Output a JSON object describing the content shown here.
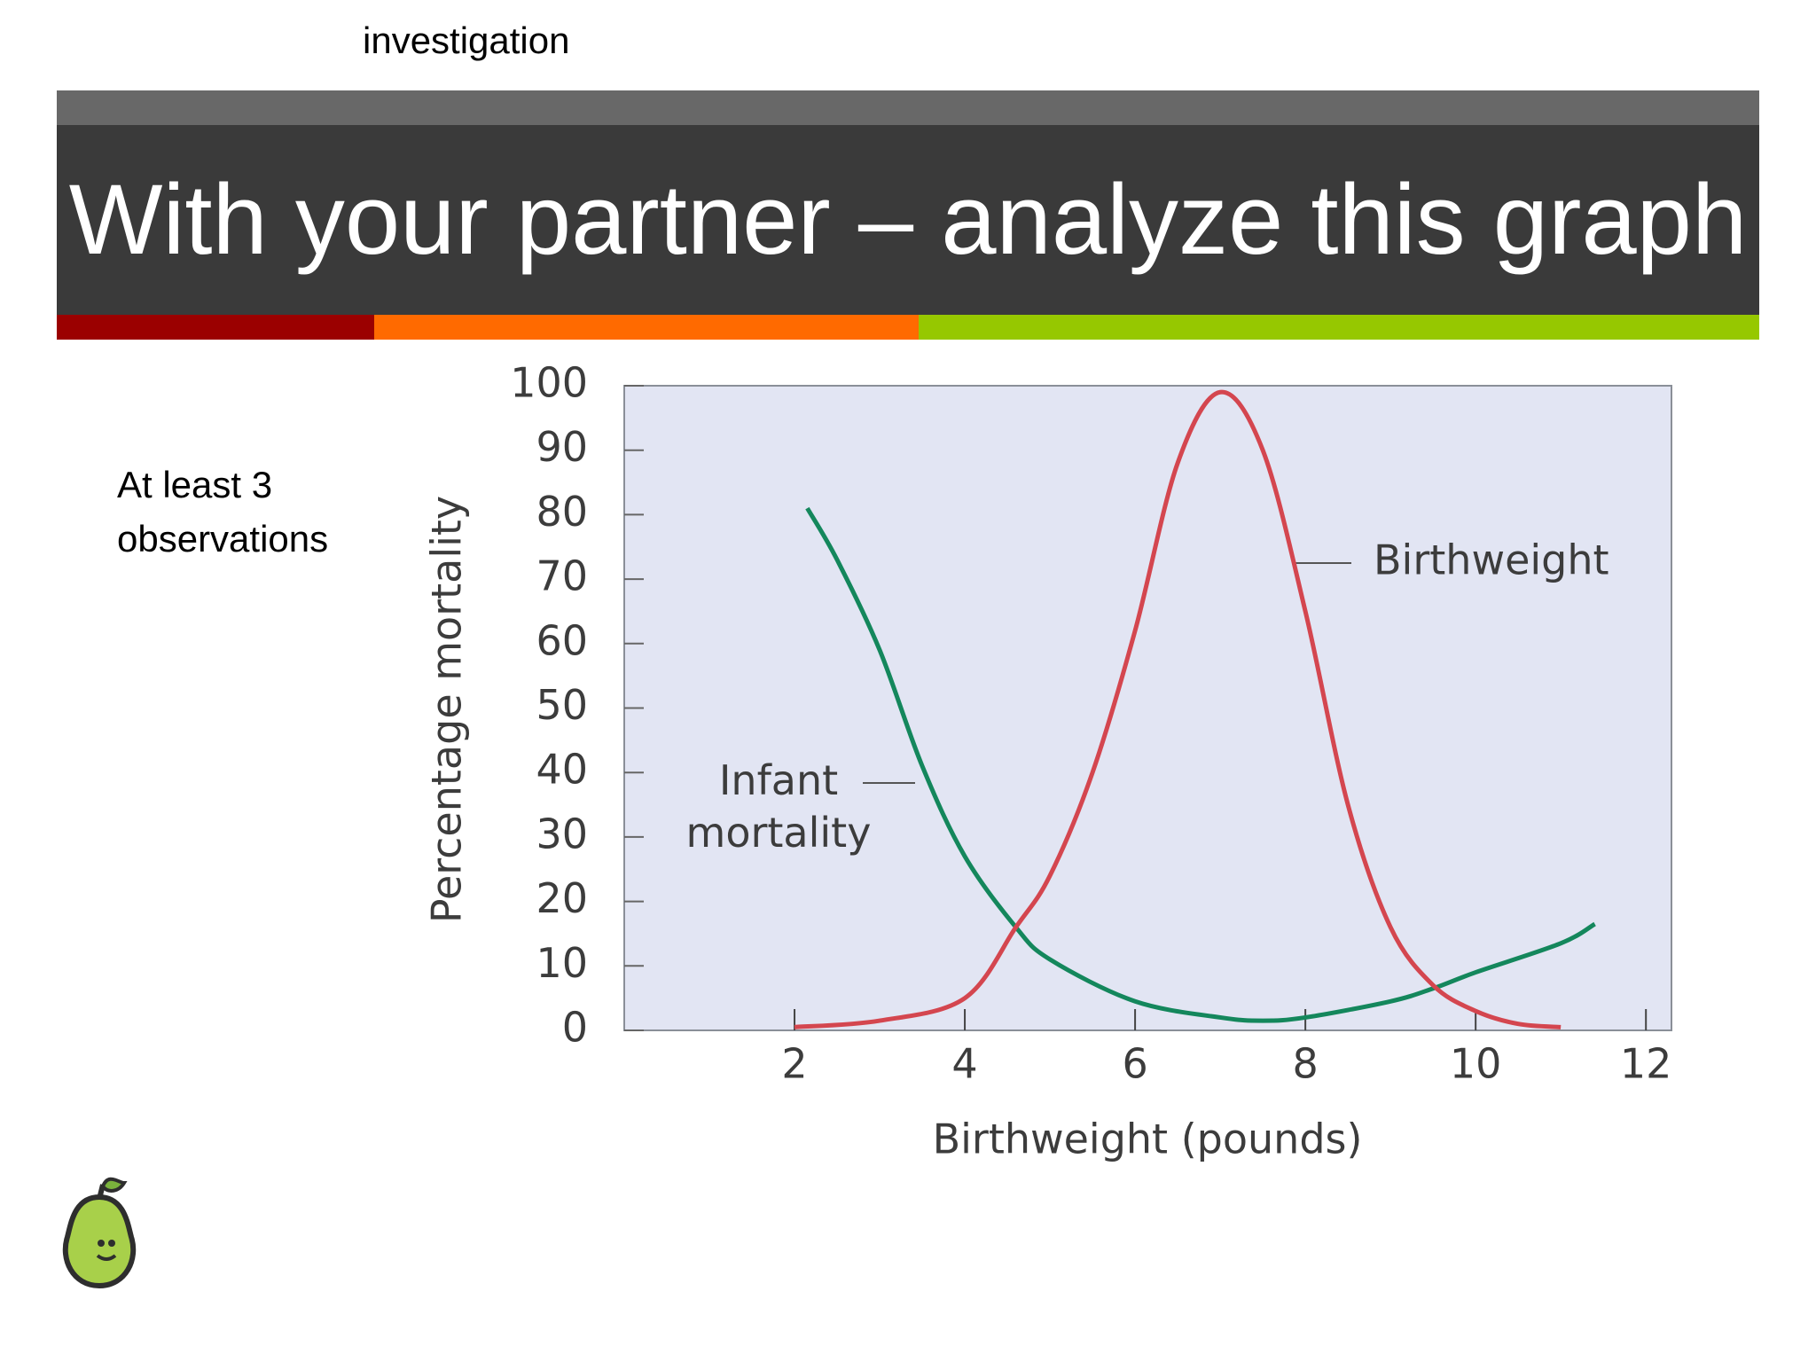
{
  "slide": {
    "header": "investigation",
    "title": "With your partner – analyze this graph",
    "note": "At least 3 observations"
  },
  "chart_data": {
    "type": "line",
    "xlabel": "Birthweight (pounds)",
    "ylabel": "Percentage mortality",
    "xlim": [
      0,
      12.3
    ],
    "ylim": [
      0,
      100
    ],
    "xticks": [
      2,
      4,
      6,
      8,
      10,
      12
    ],
    "yticks": [
      0,
      10,
      20,
      30,
      40,
      50,
      60,
      70,
      80,
      90,
      100
    ],
    "series": [
      {
        "name": "Infant mortality",
        "color": "#14875c",
        "x": [
          2.15,
          2.5,
          3,
          3.5,
          4,
          4.6,
          5,
          6,
          7,
          7.5,
          8,
          9,
          9.5,
          10,
          11,
          11.4
        ],
        "values": [
          81,
          73,
          59,
          41,
          27,
          16,
          11,
          4.5,
          2,
          1.5,
          2,
          4.5,
          6.5,
          9,
          13.5,
          16.5
        ]
      },
      {
        "name": "Birthweight",
        "color": "#d4464f",
        "x": [
          2,
          3,
          4,
          4.6,
          5,
          5.5,
          6,
          6.5,
          7,
          7.5,
          8,
          8.5,
          9,
          9.5,
          10,
          10.5,
          11
        ],
        "values": [
          0.5,
          1.5,
          5,
          16,
          24,
          40,
          62,
          88,
          99,
          90,
          65,
          35,
          16,
          7,
          3,
          1,
          0.5
        ]
      }
    ]
  }
}
